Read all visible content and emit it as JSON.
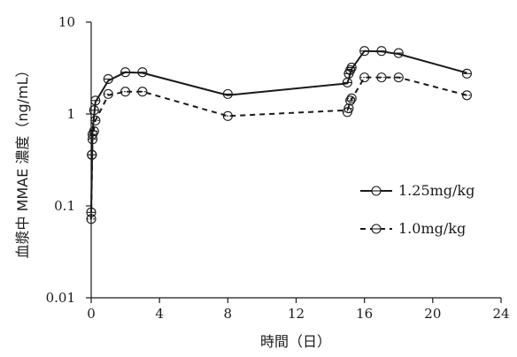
{
  "chart_data": {
    "type": "line",
    "xlabel": "時間（日）",
    "ylabel": "血漿中 MMAE 濃度（ng/mL）",
    "yscale": "log",
    "xlim": [
      0,
      24
    ],
    "ylim": [
      0.01,
      10
    ],
    "x_ticks": [
      "0",
      "4",
      "8",
      "12",
      "16",
      "20",
      "24"
    ],
    "y_ticks": [
      "0.01",
      "0.1",
      "1",
      "10"
    ],
    "grid": false,
    "legend_position": "right",
    "series": [
      {
        "name": "1.25mg/kg",
        "line_style": "solid",
        "color": "#1a1a1a",
        "x": [
          0,
          0.04,
          0.08,
          0.17,
          0.25,
          1,
          2,
          3,
          8,
          15,
          15.08,
          15.17,
          15.25,
          16,
          17,
          18,
          22
        ],
        "y": [
          0.085,
          0.36,
          0.6,
          1.1,
          1.4,
          2.4,
          2.85,
          2.85,
          1.65,
          2.2,
          2.75,
          3.0,
          3.2,
          4.85,
          4.85,
          4.6,
          2.75
        ],
        "mean_x": [
          0,
          0.08,
          0.25,
          1,
          2,
          3,
          8,
          15,
          15.25,
          16,
          17,
          18,
          22
        ],
        "mean_y": [
          0.085,
          0.65,
          1.35,
          2.3,
          2.85,
          2.8,
          1.6,
          2.15,
          3.1,
          4.85,
          4.8,
          4.5,
          2.8
        ]
      },
      {
        "name": "1.0mg/kg",
        "line_style": "dashed",
        "color": "#1a1a1a",
        "x": [
          0,
          0.04,
          0.08,
          0.17,
          0.25,
          1,
          2,
          3,
          8,
          15,
          15.08,
          15.17,
          15.25,
          16,
          17,
          18,
          22
        ],
        "y": [
          0.072,
          0.36,
          0.53,
          0.65,
          0.85,
          1.65,
          1.75,
          1.75,
          0.95,
          1.05,
          1.15,
          1.4,
          1.48,
          2.5,
          2.5,
          2.5,
          1.6
        ],
        "mean_x": [
          0,
          0.08,
          0.25,
          1,
          2,
          3,
          8,
          15,
          15.25,
          16,
          17,
          18,
          22
        ],
        "mean_y": [
          0.072,
          0.55,
          0.85,
          1.6,
          1.75,
          1.75,
          0.95,
          1.1,
          1.45,
          2.5,
          2.5,
          2.5,
          1.6
        ]
      }
    ]
  }
}
